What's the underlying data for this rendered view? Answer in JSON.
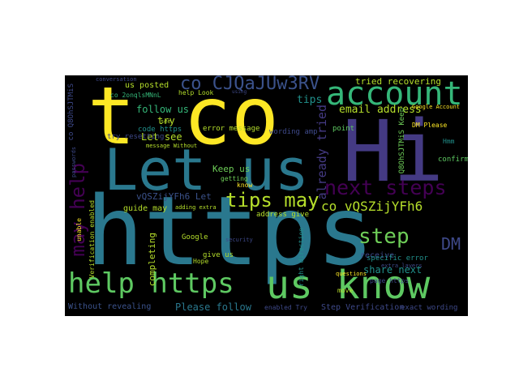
{
  "words": {
    "https": "https",
    "hi": "Hi",
    "t_co": "t co",
    "let_us": "Let us",
    "us_know": "us know",
    "account": "account",
    "help_https": "help https",
    "co_cjq": "co CJQaJUw3RV",
    "next_steps": "next steps",
    "tips_may": "tips may",
    "step": "step",
    "may_help": "may help",
    "already_tried": "already tried",
    "dm": "DM",
    "co_vqs": "co vQSZijYFh6",
    "tried_recovering": "tried recovering",
    "email_address": "email address",
    "follow_us": "follow us",
    "lets_see": "Let see",
    "us_posted": "us posted",
    "try": "try",
    "tips": "tips",
    "keep_us": "Keep us",
    "vqs_let": "vQSZijYFh6 Let",
    "guide_may": "guide may",
    "completing": "completing",
    "share_next": "share next",
    "please_follow": "Please follow",
    "without_revealing": "Without revealing",
    "step_verification": "Step Verification",
    "exact_wording": "exact wording",
    "error_message": "error message",
    "wording_amp": "wording amp",
    "code_https": "code https",
    "try_resetting": "try resetting",
    "co_2on": "co 2onqlsMNnL",
    "co_q80": "co Q8OhSJTMiS",
    "q80_keep": "Q8OhSJTMiS Keep",
    "dm_please": "DM Please",
    "hmm": "Hmm",
    "confirm": "confirm",
    "point": "point",
    "receive": "receive",
    "specific_error": "specific error",
    "give_us": "give us",
    "google": "Google",
    "hope": "Hope",
    "verification_enabled": "Verification enabled",
    "unable": "unable",
    "address_give": "address give",
    "getting": "getting",
    "know": "know",
    "right_direction": "right direction",
    "google_account": "Google Account",
    "conversation": "conversation",
    "enabled_try": "enabled Try",
    "see": "see",
    "help_look": "help Look",
    "message_without": "message Without",
    "questions": "questions",
    "move": "move",
    "page_https": "page https",
    "extra_layers": "extra layers",
    "adding_extra": "adding extra",
    "security": "security",
    "passwords": "passwords",
    "using": "using"
  },
  "colors": {
    "background": "#000000",
    "page": "#ffffff"
  }
}
